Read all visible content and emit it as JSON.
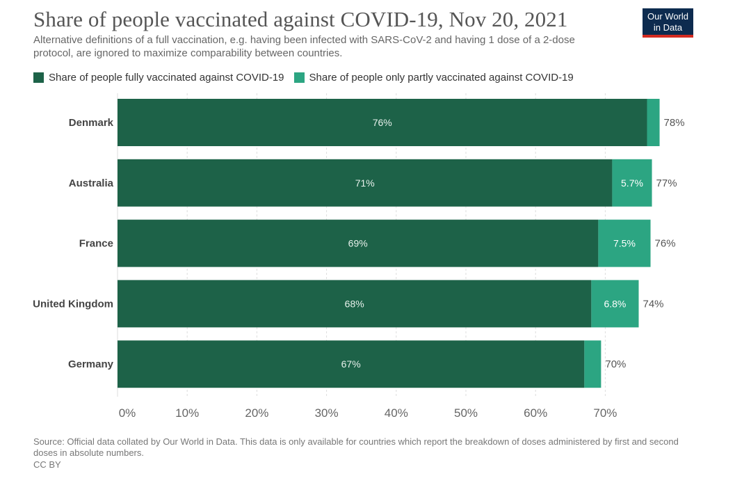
{
  "header": {
    "title": "Share of people vaccinated against COVID-19, Nov 20, 2021",
    "subtitle": "Alternative definitions of a full vaccination, e.g. having been infected with SARS-CoV-2 and having 1 dose of a 2-dose protocol, are ignored to maximize comparability between countries.",
    "logo_line1": "Our World",
    "logo_line2": "in Data"
  },
  "colors": {
    "fully": "#1d6248",
    "partly": "#2ca582",
    "logo_bg": "#0d2b4f",
    "logo_accent": "#d42b21"
  },
  "chart_data": {
    "type": "bar",
    "orientation": "horizontal",
    "stacked": true,
    "categories": [
      "Denmark",
      "Australia",
      "France",
      "United Kingdom",
      "Germany"
    ],
    "series": [
      {
        "name": "Share of people fully vaccinated against COVID-19",
        "values": [
          76,
          71,
          69,
          68,
          67
        ],
        "labels": [
          "76%",
          "71%",
          "69%",
          "68%",
          "67%"
        ]
      },
      {
        "name": "Share of people only partly vaccinated against COVID-19",
        "values": [
          1.8,
          5.7,
          7.5,
          6.8,
          2.4
        ],
        "labels": [
          "",
          "5.7%",
          "7.5%",
          "6.8%",
          ""
        ]
      }
    ],
    "totals": [
      "78%",
      "77%",
      "76%",
      "74%",
      "70%"
    ],
    "xlim": [
      0,
      78
    ],
    "xticks": [
      0,
      10,
      20,
      30,
      40,
      50,
      60,
      70
    ],
    "xtick_labels": [
      "0%",
      "10%",
      "20%",
      "30%",
      "40%",
      "50%",
      "60%",
      "70%"
    ],
    "grid": true,
    "legend_position": "top-left"
  },
  "footer": {
    "source": "Source: Official data collated by Our World in Data. This data is only available for countries which report the breakdown of doses administered by first and second doses in absolute numbers.",
    "license": "CC BY"
  }
}
